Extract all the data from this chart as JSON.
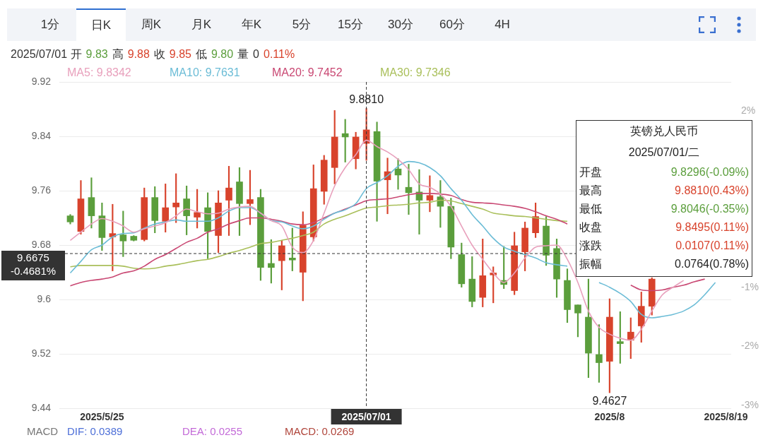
{
  "chart_data": {
    "type": "candlestick",
    "categories": [
      null,
      null,
      null,
      "2025/5/25",
      null,
      null,
      null,
      null,
      null,
      null,
      null,
      null,
      null,
      null,
      null,
      null,
      null,
      null,
      null,
      null,
      null,
      null,
      null,
      null,
      null,
      null,
      null,
      null,
      "2025/07/01",
      null,
      null,
      null,
      null,
      null,
      null,
      null,
      null,
      null,
      null,
      null,
      null,
      null,
      null,
      null,
      null,
      null,
      null,
      null,
      null,
      null,
      null,
      "2025/8",
      null,
      null,
      null,
      null,
      null,
      null,
      null,
      null,
      null,
      null,
      "2025/8/19"
    ],
    "series": [
      {
        "ohlc": [
          [
            9.723,
            9.725,
            9.711,
            9.714
          ],
          [
            9.7,
            9.775,
            9.696,
            9.748
          ],
          [
            9.75,
            9.779,
            9.705,
            9.723
          ],
          [
            9.723,
            9.742,
            9.672,
            9.691
          ],
          [
            9.692,
            9.74,
            9.642,
            9.697
          ],
          [
            9.695,
            9.73,
            9.663,
            9.686
          ],
          [
            9.693,
            9.694,
            9.686,
            9.687
          ],
          [
            9.688,
            9.764,
            9.686,
            9.75
          ],
          [
            9.75,
            9.766,
            9.698,
            9.716
          ],
          [
            9.715,
            9.77,
            9.699,
            9.735
          ],
          [
            9.736,
            9.785,
            9.713,
            9.742
          ],
          [
            9.748,
            9.767,
            9.695,
            9.723
          ],
          [
            9.721,
            9.762,
            9.705,
            9.728
          ],
          [
            9.735,
            9.757,
            9.66,
            9.7
          ],
          [
            9.694,
            9.76,
            9.669,
            9.742
          ],
          [
            9.746,
            9.796,
            9.694,
            9.764
          ],
          [
            9.773,
            9.794,
            9.694,
            9.741
          ],
          [
            9.741,
            9.79,
            9.71,
            9.747
          ],
          [
            9.75,
            9.762,
            9.628,
            9.647
          ],
          [
            9.653,
            9.688,
            9.624,
            9.647
          ],
          [
            9.657,
            9.687,
            9.614,
            9.679
          ],
          [
            9.661,
            9.705,
            9.642,
            9.658
          ],
          [
            9.64,
            9.729,
            9.598,
            9.709
          ],
          [
            9.692,
            9.798,
            9.686,
            9.763
          ],
          [
            9.759,
            9.812,
            9.74,
            9.805
          ],
          [
            9.794,
            9.878,
            9.77,
            9.839
          ],
          [
            9.844,
            9.865,
            9.802,
            9.839
          ],
          [
            9.807,
            9.846,
            9.792,
            9.839
          ],
          [
            9.8296,
            9.881,
            9.8046,
            9.8495
          ],
          [
            9.847,
            9.861,
            9.715,
            9.774
          ],
          [
            9.776,
            9.808,
            9.726,
            9.788
          ],
          [
            9.792,
            9.807,
            9.762,
            9.783
          ],
          [
            9.765,
            9.799,
            9.725,
            9.757
          ],
          [
            9.758,
            9.791,
            9.696,
            9.746
          ],
          [
            9.746,
            9.782,
            9.729,
            9.753
          ],
          [
            9.751,
            9.775,
            9.706,
            9.737
          ],
          [
            9.737,
            9.749,
            9.66,
            9.677
          ],
          [
            9.666,
            9.683,
            9.618,
            9.623
          ],
          [
            9.63,
            9.663,
            9.589,
            9.597
          ],
          [
            9.603,
            9.689,
            9.589,
            9.635
          ],
          [
            9.636,
            9.648,
            9.595,
            9.639
          ],
          [
            9.628,
            9.678,
            9.616,
            9.622
          ],
          [
            9.613,
            9.699,
            9.607,
            9.679
          ],
          [
            9.67,
            9.714,
            9.642,
            9.705
          ],
          [
            9.698,
            9.742,
            9.691,
            9.722
          ],
          [
            9.708,
            9.722,
            9.65,
            9.665
          ],
          [
            9.675,
            9.689,
            9.603,
            9.63
          ],
          [
            9.628,
            9.645,
            9.566,
            9.585
          ],
          [
            9.592,
            9.592,
            9.545,
            9.58
          ],
          [
            9.574,
            9.63,
            9.485,
            9.521
          ],
          [
            9.519,
            9.563,
            9.478,
            9.507
          ],
          [
            9.509,
            9.601,
            9.4627,
            9.574
          ],
          [
            9.538,
            9.582,
            9.506,
            9.535
          ],
          [
            9.54,
            9.573,
            9.513,
            9.552
          ],
          [
            9.561,
            9.611,
            9.537,
            9.59
          ],
          [
            9.59,
            9.632,
            9.577,
            9.63
          ],
          null,
          null,
          null,
          null,
          null,
          null,
          null
        ],
        "colors": [
          "#5b9e3c",
          "#d8432c",
          "#5b9e3c",
          "#5b9e3c",
          "#d8432c",
          "#5b9e3c",
          "#5b9e3c",
          "#d8432c",
          "#5b9e3c",
          "#d8432c",
          "#d8432c",
          "#5b9e3c",
          "#d8432c",
          "#5b9e3c",
          "#d8432c",
          "#d8432c",
          "#5b9e3c",
          "#d8432c",
          "#5b9e3c",
          "#5b9e3c",
          "#d8432c",
          "#5b9e3c",
          "#d8432c",
          "#d8432c",
          "#d8432c",
          "#d8432c",
          "#5b9e3c",
          "#d8432c",
          "#d8432c",
          "#5b9e3c",
          "#d8432c",
          "#5b9e3c",
          "#5b9e3c",
          "#5b9e3c",
          "#d8432c",
          "#5b9e3c",
          "#5b9e3c",
          "#5b9e3c",
          "#5b9e3c",
          "#d8432c",
          "#d8432c",
          "#5b9e3c",
          "#d8432c",
          "#d8432c",
          "#d8432c",
          "#5b9e3c",
          "#5b9e3c",
          "#5b9e3c",
          "#5b9e3c",
          "#5b9e3c",
          "#5b9e3c",
          "#d8432c",
          "#5b9e3c",
          "#d8432c",
          "#d8432c",
          "#d8432c",
          null,
          null,
          null,
          null,
          null,
          null,
          null
        ]
      },
      {
        "type": "line",
        "name": "MA5: 9.8342",
        "color": "#e8a0bc",
        "values": [
          9.687,
          9.699,
          9.711,
          9.719,
          9.715,
          9.708,
          9.699,
          9.704,
          9.708,
          9.713,
          9.723,
          9.733,
          9.729,
          9.726,
          9.727,
          9.733,
          9.736,
          9.737,
          9.727,
          9.716,
          9.708,
          9.677,
          9.669,
          9.687,
          9.727,
          9.767,
          9.794,
          9.813,
          9.8342,
          9.825,
          9.817,
          9.806,
          9.791,
          9.77,
          9.765,
          9.755,
          9.737,
          9.708,
          9.68,
          9.659,
          9.639,
          9.625,
          9.639,
          9.661,
          9.677,
          9.679,
          9.68,
          9.659,
          9.625,
          9.583,
          9.559,
          9.549,
          9.543,
          9.54,
          9.556,
          9.583,
          9.607,
          9.618,
          9.628,
          null,
          null,
          null,
          null
        ]
      },
      {
        "type": "line",
        "name": "MA10: 9.7631",
        "color": "#6bbcd6",
        "values": [
          9.639,
          9.656,
          9.673,
          9.68,
          9.692,
          9.697,
          9.698,
          9.705,
          9.711,
          9.714,
          9.717,
          9.715,
          9.715,
          9.715,
          9.72,
          9.73,
          9.735,
          9.735,
          9.727,
          9.716,
          9.714,
          9.708,
          9.704,
          9.708,
          9.718,
          9.727,
          9.732,
          9.741,
          9.7631,
          9.772,
          9.782,
          9.796,
          9.803,
          9.801,
          9.794,
          9.782,
          9.763,
          9.746,
          9.725,
          9.708,
          9.69,
          9.677,
          9.671,
          9.666,
          9.661,
          9.654,
          9.651,
          9.649,
          null,
          null,
          9.625,
          9.618,
          9.609,
          9.597,
          9.578,
          9.573,
          9.575,
          9.578,
          9.583,
          9.592,
          9.607,
          9.625,
          null
        ]
      },
      {
        "type": "line",
        "name": "MA20: 9.7452",
        "color": "#c94873",
        "values": [
          9.62,
          9.625,
          9.628,
          9.63,
          9.633,
          9.639,
          9.642,
          9.649,
          9.659,
          9.666,
          9.675,
          9.684,
          9.69,
          9.699,
          9.704,
          9.711,
          9.716,
          9.72,
          9.72,
          9.718,
          9.715,
          9.711,
          9.71,
          9.713,
          9.72,
          9.727,
          9.733,
          9.739,
          9.7452,
          9.747,
          9.748,
          9.751,
          9.754,
          9.756,
          9.756,
          9.755,
          9.753,
          9.747,
          9.743,
          9.742,
          9.741,
          9.739,
          9.737,
          9.734,
          9.729,
          9.723,
          9.718,
          9.711,
          null,
          null,
          null,
          null,
          null,
          9.621,
          9.614,
          9.613,
          9.614,
          9.618,
          9.621,
          9.626,
          9.63,
          null,
          null
        ]
      },
      {
        "type": "line",
        "name": "MA30: 9.7346",
        "color": "#a9bf5a",
        "values": [
          9.648,
          9.65,
          9.65,
          9.65,
          9.65,
          9.649,
          9.646,
          9.645,
          9.646,
          9.649,
          9.651,
          9.654,
          9.657,
          9.659,
          9.663,
          9.668,
          9.672,
          9.677,
          9.682,
          9.684,
          9.687,
          9.69,
          9.694,
          9.699,
          9.711,
          9.718,
          9.723,
          9.729,
          9.7346,
          9.736,
          9.738,
          9.739,
          9.74,
          9.742,
          9.743,
          9.746,
          9.745,
          9.741,
          9.737,
          9.733,
          9.727,
          9.725,
          9.723,
          9.722,
          9.72,
          9.718,
          9.716,
          9.715,
          null,
          null,
          null,
          null,
          null,
          null,
          null,
          null,
          null,
          null,
          null,
          null,
          null,
          null,
          null
        ]
      }
    ],
    "ylim": [
      9.44,
      9.92
    ],
    "yticks": [
      9.92,
      9.84,
      9.76,
      9.68,
      9.6,
      9.52,
      9.44
    ],
    "y2lim": [
      -3.05,
      2.5
    ],
    "y2ticks": [
      {
        "value": 2,
        "label": "2%"
      },
      {
        "value": -1,
        "label": "-1%"
      },
      {
        "value": -2,
        "label": "-2%"
      },
      {
        "value": -3,
        "label": "-3%"
      }
    ],
    "grid": "y",
    "legend": "top left",
    "marker": "none",
    "ref_lines": [
      {
        "axis": "x",
        "value": "2025/07/01",
        "line_style": "dashed",
        "color": "#333333"
      },
      {
        "axis": "y",
        "value": 9.6675,
        "label": "9.6675",
        "line_style": "dashed",
        "color": "#333333"
      }
    ],
    "annotations": [
      "1分",
      "日K",
      "周K",
      "月K",
      "年K",
      "5分",
      "15分",
      "30分",
      "60分",
      "4H",
      "2025/07/01 开",
      "9.83",
      "高",
      "9.88",
      "收",
      "9.85",
      "低",
      "9.80",
      "量",
      "0",
      "0.11%",
      "英镑兑人民币",
      "2025/07/01/二",
      "开盘",
      "9.8296(-0.09%)",
      "最高",
      "9.8810(0.43%)",
      "最低",
      "9.8046(-0.35%)",
      "收盘",
      "9.8495(0.11%)",
      "涨跌",
      "0.0107(0.11%)",
      "振幅",
      "0.0764(0.78%)",
      "MACD",
      "DIF: 0.0389",
      "DEA: 0.0255",
      "MACD: 0.0269",
      "-0.4681%",
      {
        "text": "9.8810",
        "x": "2025/07/01",
        "y": 9.881
      },
      {
        "text": "9.4627",
        "x": "2025/8",
        "y": 9.4627
      }
    ]
  }
}
